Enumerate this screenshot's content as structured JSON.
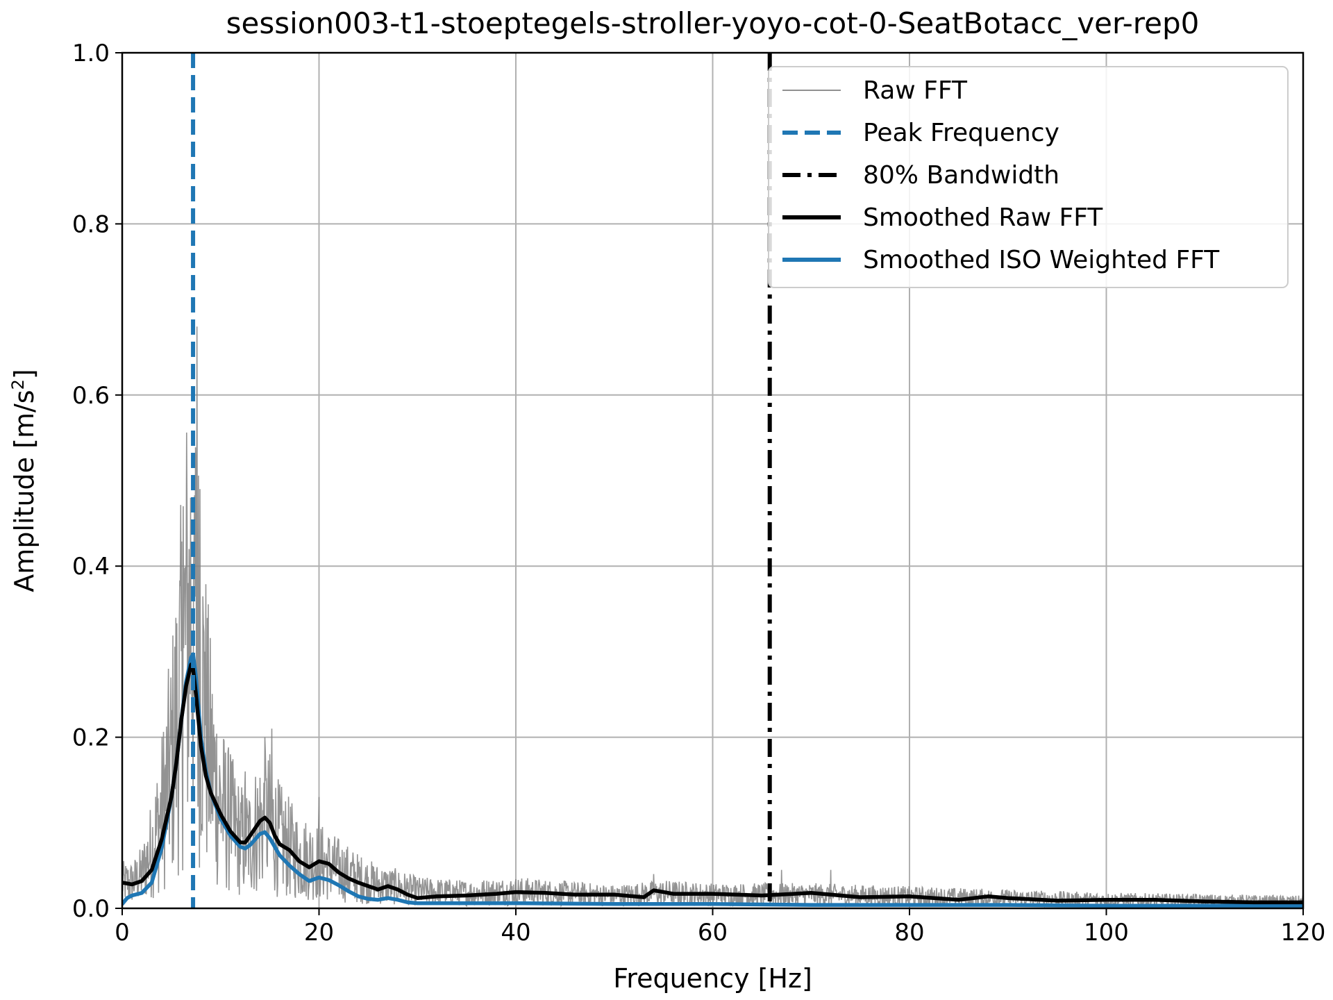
{
  "chart_data": {
    "type": "line",
    "title": "session003-t1-stoeptegels-stroller-yoyo-cot-0-SeatBotacc_ver-rep0",
    "xlabel": "Frequency [Hz]",
    "ylabel_main": "Amplitude [m/s",
    "ylabel_sup": "2",
    "ylabel_end": "]",
    "xlim": [
      0,
      120
    ],
    "ylim": [
      0,
      1.0
    ],
    "xticks": [
      0,
      20,
      40,
      60,
      80,
      100,
      120
    ],
    "xtick_labels": [
      "0",
      "20",
      "40",
      "60",
      "80",
      "100",
      "120"
    ],
    "yticks": [
      0,
      0.2,
      0.4,
      0.6,
      0.8,
      1.0
    ],
    "ytick_labels": [
      "0.0",
      "0.2",
      "0.4",
      "0.6",
      "0.8",
      "1.0"
    ],
    "grid": true,
    "legend_position": "top-right",
    "peak_frequency": 7.2,
    "bandwidth_80": 65.8,
    "series": [
      {
        "name": "Raw FFT",
        "color": "#808080",
        "style": "solid-thin",
        "anchors": {
          "x": [
            0,
            1,
            2,
            3,
            4,
            5,
            6,
            6.5,
            7,
            7.2,
            7.5,
            8,
            9,
            10,
            11,
            12,
            13,
            14,
            15,
            16,
            17,
            18,
            20,
            22,
            24,
            26,
            28,
            30,
            35,
            40,
            50,
            55,
            60,
            70,
            80,
            90,
            100,
            110,
            120
          ],
          "y": [
            0.03,
            0.03,
            0.04,
            0.07,
            0.11,
            0.17,
            0.26,
            0.32,
            0.37,
            0.38,
            0.34,
            0.27,
            0.17,
            0.12,
            0.1,
            0.08,
            0.08,
            0.1,
            0.1,
            0.08,
            0.07,
            0.06,
            0.055,
            0.045,
            0.035,
            0.028,
            0.025,
            0.02,
            0.018,
            0.02,
            0.015,
            0.018,
            0.016,
            0.016,
            0.014,
            0.012,
            0.01,
            0.009,
            0.008
          ]
        },
        "spikes": [
          [
            6.2,
            0.47
          ],
          [
            6.8,
            0.42
          ],
          [
            7.3,
            0.43
          ],
          [
            7.6,
            0.68
          ],
          [
            7.9,
            0.49
          ],
          [
            8.4,
            0.3
          ],
          [
            11.0,
            0.18
          ],
          [
            14.5,
            0.2
          ],
          [
            15.2,
            0.21
          ],
          [
            12.5,
            0.16
          ],
          [
            20.0,
            0.13
          ],
          [
            54.0,
            0.04
          ],
          [
            72.0,
            0.045
          ],
          [
            67.0,
            0.045
          ]
        ]
      },
      {
        "name": "Peak Frequency",
        "color": "#1f77b4",
        "style": "dashed",
        "x_at": 7.2
      },
      {
        "name": "80% Bandwidth",
        "color": "#000000",
        "style": "dashdot",
        "x_at": 65.8
      },
      {
        "name": "Smoothed Raw FFT",
        "color": "#000000",
        "style": "solid-thick",
        "x": [
          0,
          1,
          2,
          3,
          4,
          5,
          5.5,
          6,
          6.5,
          7,
          7.2,
          7.5,
          8,
          8.5,
          9,
          10,
          11,
          12,
          12.5,
          13,
          14,
          14.5,
          15,
          15.5,
          16,
          17,
          18,
          19,
          20,
          21,
          22,
          23,
          24,
          25,
          26,
          27,
          28,
          29,
          30,
          32,
          35,
          38,
          40,
          43,
          46,
          50,
          53,
          54,
          56,
          60,
          65,
          70,
          75,
          80,
          85,
          88,
          90,
          95,
          100,
          105,
          110,
          115,
          120
        ],
        "y": [
          0.03,
          0.028,
          0.032,
          0.045,
          0.08,
          0.13,
          0.17,
          0.22,
          0.26,
          0.285,
          0.28,
          0.25,
          0.19,
          0.155,
          0.135,
          0.11,
          0.09,
          0.077,
          0.077,
          0.085,
          0.102,
          0.106,
          0.1,
          0.085,
          0.075,
          0.068,
          0.055,
          0.048,
          0.055,
          0.052,
          0.042,
          0.035,
          0.03,
          0.026,
          0.022,
          0.026,
          0.022,
          0.016,
          0.012,
          0.014,
          0.015,
          0.017,
          0.019,
          0.018,
          0.016,
          0.016,
          0.013,
          0.021,
          0.017,
          0.017,
          0.015,
          0.018,
          0.013,
          0.014,
          0.01,
          0.014,
          0.012,
          0.009,
          0.01,
          0.01,
          0.008,
          0.007,
          0.007
        ]
      },
      {
        "name": "Smoothed ISO Weighted FFT",
        "color": "#1f77b4",
        "style": "solid-thick",
        "x": [
          0,
          0.5,
          1,
          2,
          3,
          4,
          5,
          5.5,
          6,
          6.5,
          7,
          7.2,
          7.5,
          8,
          8.5,
          9,
          10,
          11,
          12,
          12.5,
          13,
          14,
          14.5,
          15,
          16,
          17,
          18,
          19,
          20,
          21,
          22,
          23,
          24,
          25,
          26,
          27,
          28,
          29,
          30,
          35,
          40,
          50,
          60,
          70,
          80,
          90,
          100,
          110,
          120
        ],
        "y": [
          0.005,
          0.012,
          0.015,
          0.018,
          0.03,
          0.07,
          0.13,
          0.17,
          0.22,
          0.265,
          0.293,
          0.297,
          0.27,
          0.2,
          0.16,
          0.135,
          0.105,
          0.085,
          0.072,
          0.07,
          0.074,
          0.087,
          0.089,
          0.082,
          0.062,
          0.05,
          0.04,
          0.032,
          0.036,
          0.033,
          0.027,
          0.02,
          0.014,
          0.011,
          0.01,
          0.012,
          0.01,
          0.007,
          0.006,
          0.006,
          0.006,
          0.005,
          0.005,
          0.004,
          0.004,
          0.004,
          0.003,
          0.003,
          0.003
        ]
      }
    ]
  }
}
